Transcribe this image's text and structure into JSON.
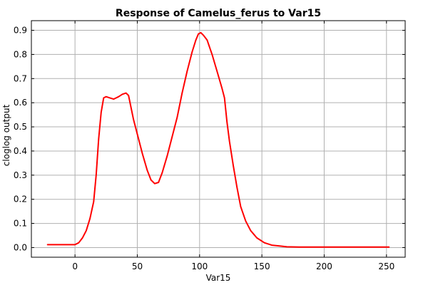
{
  "chart_data": {
    "type": "line",
    "title": "Response of Camelus_ferus to Var15",
    "xlabel": "Var15",
    "ylabel": "cloglog output",
    "xlim": [
      -35,
      265
    ],
    "ylim": [
      -0.04,
      0.94
    ],
    "xticks": [
      0,
      50,
      100,
      150,
      200,
      250
    ],
    "xtick_labels": [
      "0",
      "50",
      "100",
      "150",
      "200",
      "250"
    ],
    "yticks": [
      0.0,
      0.1,
      0.2,
      0.3,
      0.4,
      0.5,
      0.6,
      0.7,
      0.8,
      0.9
    ],
    "ytick_labels": [
      "0.0",
      "0.1",
      "0.2",
      "0.3",
      "0.4",
      "0.5",
      "0.6",
      "0.7",
      "0.8",
      "0.9"
    ],
    "grid": true,
    "series": [
      {
        "color": "#ff0000",
        "x": [
          -22,
          0,
          3,
          6,
          9,
          12,
          15,
          17,
          19,
          21,
          23,
          25,
          28,
          31,
          35,
          38,
          41,
          43,
          45,
          47,
          50,
          54,
          58,
          61,
          64,
          67,
          70,
          74,
          78,
          82,
          86,
          90,
          94,
          97,
          99,
          101,
          103,
          106,
          110,
          114,
          118,
          120,
          122,
          124,
          127,
          130,
          133,
          137,
          141,
          146,
          152,
          158,
          165,
          170,
          180,
          200,
          220,
          252
        ],
        "y": [
          0.012,
          0.012,
          0.02,
          0.04,
          0.07,
          0.12,
          0.19,
          0.3,
          0.45,
          0.56,
          0.62,
          0.625,
          0.62,
          0.615,
          0.625,
          0.635,
          0.64,
          0.63,
          0.58,
          0.53,
          0.47,
          0.39,
          0.32,
          0.28,
          0.265,
          0.27,
          0.31,
          0.38,
          0.46,
          0.54,
          0.64,
          0.73,
          0.81,
          0.86,
          0.885,
          0.89,
          0.88,
          0.86,
          0.8,
          0.73,
          0.66,
          0.62,
          0.52,
          0.44,
          0.34,
          0.25,
          0.17,
          0.11,
          0.07,
          0.04,
          0.02,
          0.01,
          0.006,
          0.003,
          0.002,
          0.002,
          0.002,
          0.002
        ]
      }
    ]
  }
}
